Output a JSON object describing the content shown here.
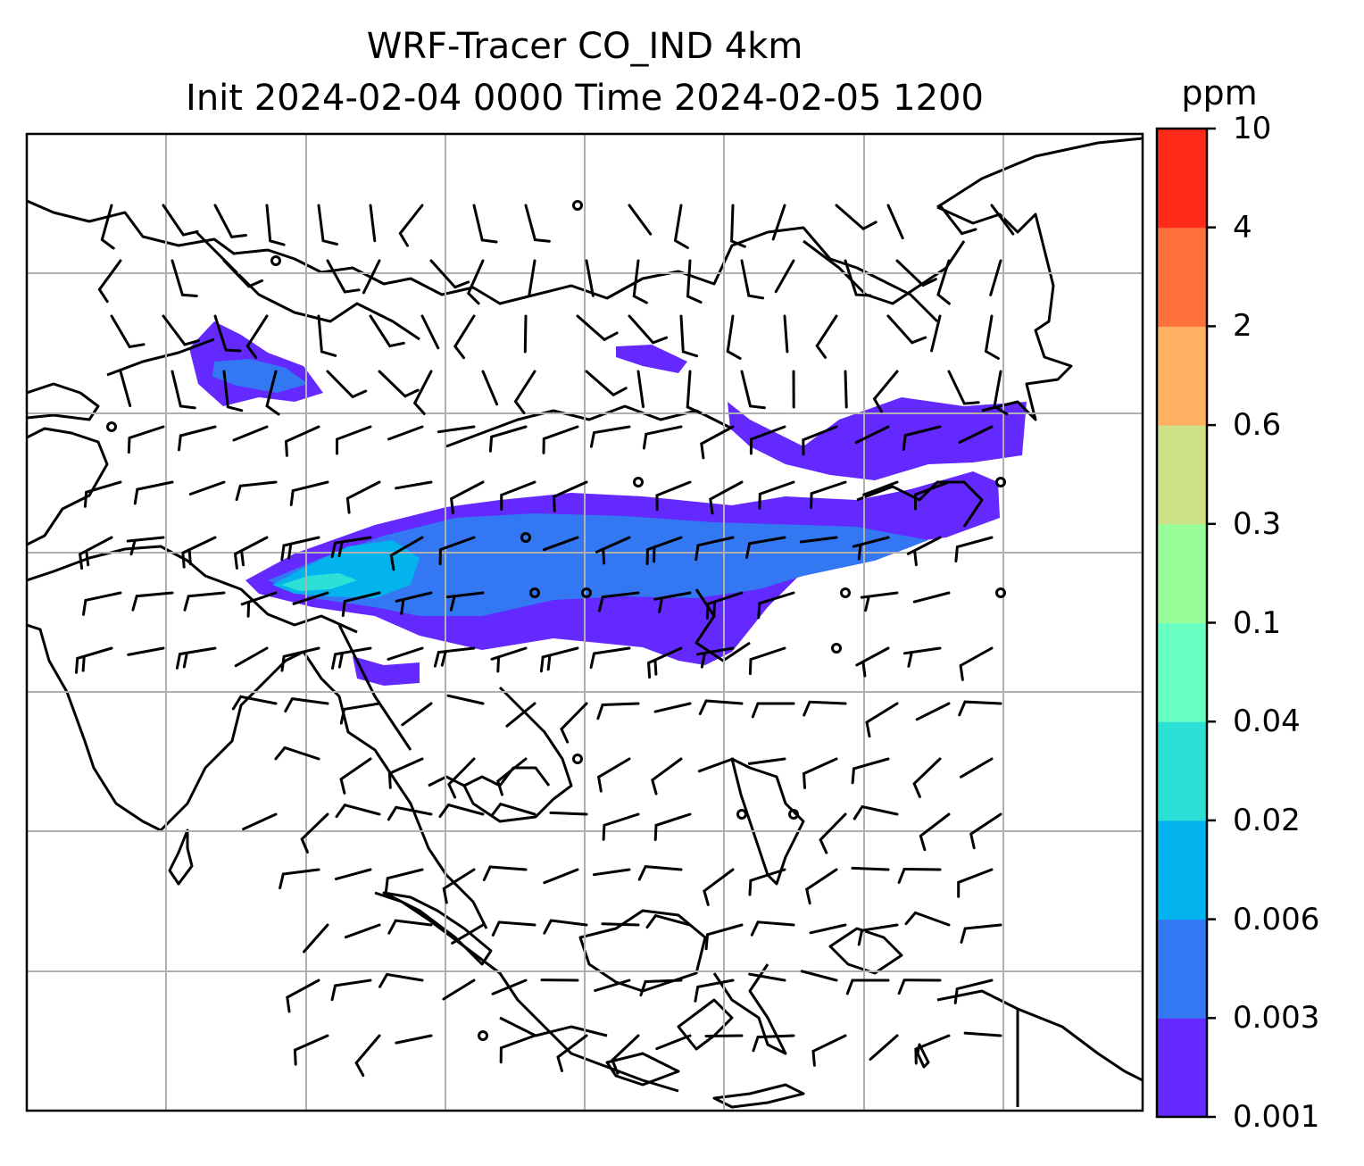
{
  "title_line1": "WRF-Tracer CO_IND 4km",
  "title_line2": "Init 2024-02-04 0000 Time 2024-02-05 1200",
  "colorbar": {
    "unit": "ppm",
    "ticks": [
      "0.001",
      "0.003",
      "0.006",
      "0.02",
      "0.04",
      "0.1",
      "0.3",
      "0.6",
      "2",
      "4",
      "10"
    ],
    "colors": [
      "#6329ff",
      "#3377f2",
      "#03b3ed",
      "#2ce0d6",
      "#68ffc2",
      "#98fe9a",
      "#cde085",
      "#ffb061",
      "#ff723c",
      "#ff2a17"
    ]
  },
  "plume_colors": {
    "lowest": "#6329ff",
    "low": "#3377f2",
    "mid": "#03b3ed",
    "high": "#2ce0d6"
  }
}
